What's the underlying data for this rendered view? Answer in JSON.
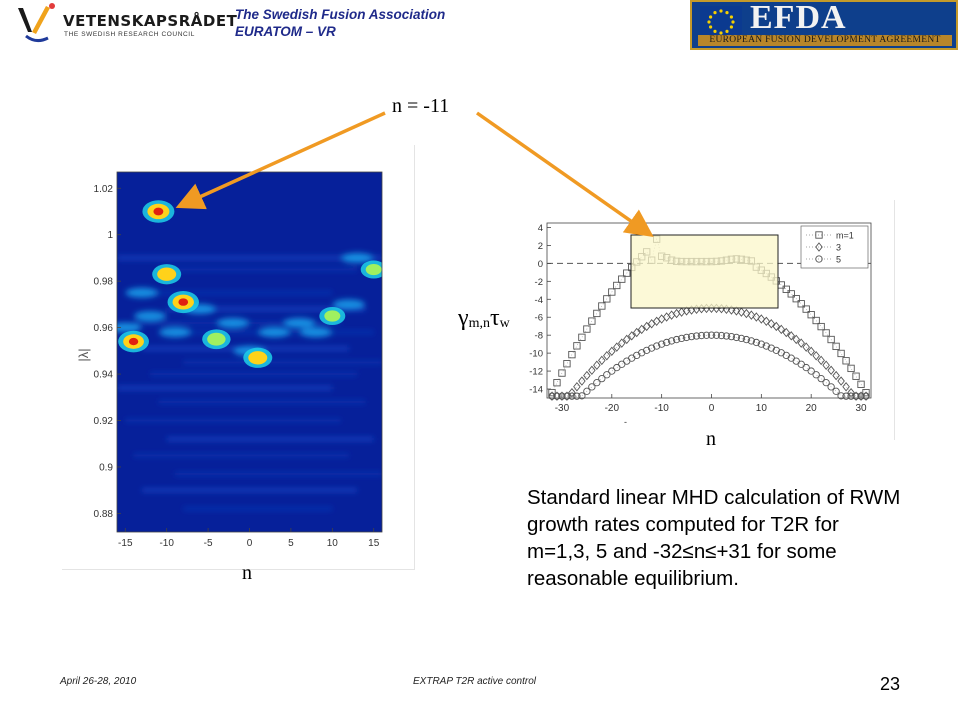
{
  "header": {
    "vr_name": "VETENSKAPSRÅDET",
    "vr_subtitle": "THE SWEDISH RESEARCH COUNCIL",
    "association_line1": "The Swedish Fusion Association",
    "association_line2": "EURATOM – VR",
    "efda_logo": "EFDA",
    "efda_full": "EUROPEAN FUSION DEVELOPMENT AGREEMENT",
    "colors": {
      "association_text": "#1f2a8a",
      "efda_blue": "#0e3f8c",
      "efda_gold": "#c49a2a",
      "arrow": "#f09a23"
    }
  },
  "callout": {
    "label": "n = -11"
  },
  "left_plot": {
    "type": "heatmap",
    "ylabel": "|λ|",
    "xlabel": "n",
    "xticks": [
      "-15",
      "-10",
      "-5",
      "0",
      "5",
      "10",
      "15"
    ],
    "yticks": [
      "1.02",
      "1",
      "0.98",
      "0.96",
      "0.94",
      "0.92",
      "0.9",
      "0.88"
    ],
    "xlim": [
      -16,
      16
    ],
    "ylim": [
      0.872,
      1.027
    ],
    "hot_spots": [
      {
        "x": -11,
        "y": 1.01,
        "value": 1.0
      },
      {
        "x": -10,
        "y": 0.983,
        "value": 0.75
      },
      {
        "x": -8,
        "y": 0.971,
        "value": 0.95
      },
      {
        "x": -14,
        "y": 0.954,
        "value": 0.9
      },
      {
        "x": -4,
        "y": 0.955,
        "value": 0.7
      },
      {
        "x": 1,
        "y": 0.947,
        "value": 0.75
      },
      {
        "x": 10,
        "y": 0.965,
        "value": 0.5
      },
      {
        "x": 15,
        "y": 0.985,
        "value": 0.5
      }
    ]
  },
  "right_plot": {
    "type": "scatter",
    "ylabel": "γm,nτw",
    "ylabel_main": "γ",
    "ylabel_sub1": "m,n",
    "ylabel_tau": "τ",
    "ylabel_sub2": "w",
    "xlabel": "n",
    "xticks": [
      "-30",
      "-20",
      "-10",
      "0",
      "10",
      "20",
      "30"
    ],
    "yticks": [
      "4",
      "2",
      "0",
      "-2",
      "-4",
      "-6",
      "-8",
      "-10",
      "-12",
      "-14"
    ],
    "xlim": [
      -33,
      32
    ],
    "ylim": [
      -15,
      4.5
    ],
    "legend": [
      "m=1",
      "3",
      "5"
    ],
    "legend_position": "top-right",
    "series": [
      {
        "name": "m=1",
        "marker": "square",
        "curve": {
          "center": 0,
          "a": 0.0152,
          "peak": 0.2
        }
      },
      {
        "name": "3",
        "marker": "diamond",
        "curve": {
          "center": 0,
          "a": 0.012,
          "peak": -5.0
        }
      },
      {
        "name": "5",
        "marker": "circle",
        "curve": {
          "center": 0,
          "a": 0.01,
          "peak": -8.0
        }
      }
    ]
  },
  "description": "Standard linear MHD calculation of RWM growth rates computed for T2R for m=1,3, 5 and -32≤n≤+31 for some reasonable equilibrium.",
  "footer": {
    "date": "April 26-28, 2010",
    "title": "EXTRAP T2R active control",
    "page": "23"
  }
}
